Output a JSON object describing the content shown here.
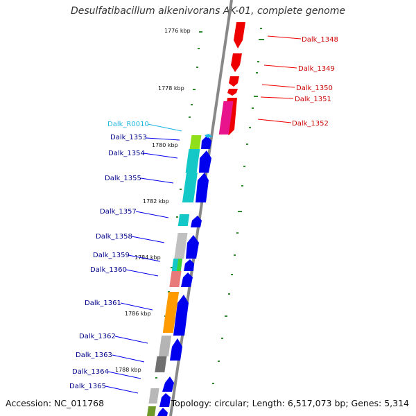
{
  "title": "Desulfatibacillum alkenivorans AK-01, complete genome",
  "footer": {
    "accession": "Accession: NC_011768",
    "topology": "Topology: circular; Length: 6,517,073 bp; Genes: 5,314"
  },
  "colors": {
    "backbone": "#888888",
    "tick": "#2e8b2e",
    "forward_gene": "#0000ee",
    "reverse_gene": "#ee0000",
    "forward_label": "#00008b",
    "reverse_label": "#cc0000",
    "rna_label": "#1fb6e0"
  },
  "kbp_labels": [
    "1776 kbp",
    "1778 kbp",
    "1780 kbp",
    "1782 kbp",
    "1784 kbp",
    "1786 kbp",
    "1788 kbp"
  ],
  "gene_labels": {
    "dalk_1348": "Dalk_1348",
    "dalk_1349": "Dalk_1349",
    "dalk_1350": "Dalk_1350",
    "dalk_1351": "Dalk_1351",
    "dalk_1352": "Dalk_1352",
    "dalk_r0010": "Dalk_R0010",
    "dalk_1353": "Dalk_1353",
    "dalk_1354": "Dalk_1354",
    "dalk_1355": "Dalk_1355",
    "dalk_1357": "Dalk_1357",
    "dalk_1358": "Dalk_1358",
    "dalk_1359": "Dalk_1359",
    "dalk_1360": "Dalk_1360",
    "dalk_1361": "Dalk_1361",
    "dalk_1362": "Dalk_1362",
    "dalk_1363": "Dalk_1363",
    "dalk_1364": "Dalk_1364",
    "dalk_1365": "Dalk_1365"
  }
}
